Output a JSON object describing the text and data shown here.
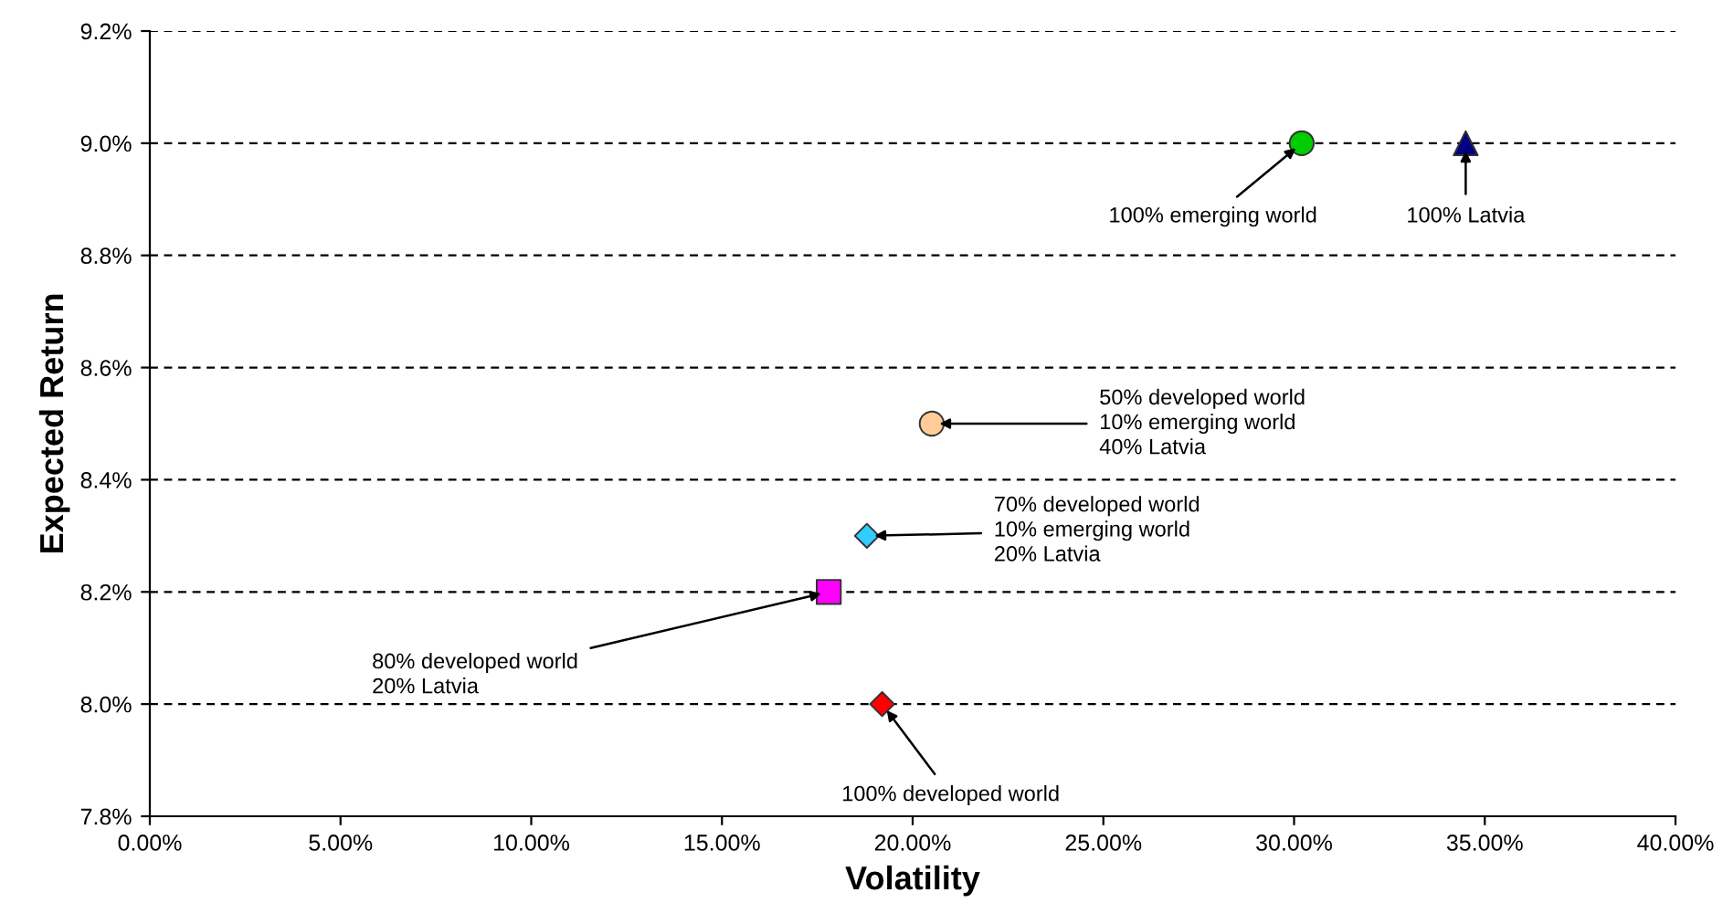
{
  "chart_data": {
    "type": "scatter",
    "xlabel": "Volatility",
    "ylabel": "Expected Return",
    "xlim": [
      0,
      40
    ],
    "ylim": [
      7.8,
      9.2
    ],
    "xticks": [
      {
        "value": 0,
        "label": "0.00%"
      },
      {
        "value": 5,
        "label": "5.00%"
      },
      {
        "value": 10,
        "label": "10.00%"
      },
      {
        "value": 15,
        "label": "15.00%"
      },
      {
        "value": 20,
        "label": "20.00%"
      },
      {
        "value": 25,
        "label": "25.00%"
      },
      {
        "value": 30,
        "label": "30.00%"
      },
      {
        "value": 35,
        "label": "35.00%"
      },
      {
        "value": 40,
        "label": "40.00%"
      }
    ],
    "yticks": [
      {
        "value": 7.8,
        "label": "7.8%"
      },
      {
        "value": 8.0,
        "label": "8.0%"
      },
      {
        "value": 8.2,
        "label": "8.2%"
      },
      {
        "value": 8.4,
        "label": "8.4%"
      },
      {
        "value": 8.6,
        "label": "8.6%"
      },
      {
        "value": 8.8,
        "label": "8.8%"
      },
      {
        "value": 9.0,
        "label": "9.0%"
      },
      {
        "value": 9.2,
        "label": "9.2%"
      }
    ],
    "grid": "y",
    "legend": false,
    "series": [
      {
        "color": "#00cc00",
        "marker": "circle",
        "x": [
          30.2
        ],
        "values": [
          9.0
        ]
      },
      {
        "color": "#000080",
        "marker": "triangle",
        "x": [
          34.5
        ],
        "values": [
          9.0
        ]
      },
      {
        "color": "#ffcc99",
        "marker": "circle",
        "x": [
          20.5
        ],
        "values": [
          8.5
        ]
      },
      {
        "color": "#33ccff",
        "marker": "diamond",
        "x": [
          18.8
        ],
        "values": [
          8.3
        ]
      },
      {
        "color": "#ff00ff",
        "marker": "square",
        "x": [
          17.8
        ],
        "values": [
          8.2
        ]
      },
      {
        "color": "#ff0000",
        "marker": "diamond",
        "x": [
          19.2
        ],
        "values": [
          8.0
        ]
      }
    ],
    "annotations": [
      {
        "text": "100% emerging world",
        "x": 30.2,
        "y": 9.0
      },
      {
        "text": "100% Latvia",
        "x": 34.5,
        "y": 9.0
      },
      {
        "text": "50% developed world\n10% emerging world\n40% Latvia",
        "x": 20.5,
        "y": 8.5
      },
      {
        "text": "70% developed world\n10% emerging world\n20% Latvia",
        "x": 18.8,
        "y": 8.3
      },
      {
        "text": "80% developed world\n20% Latvia",
        "x": 17.8,
        "y": 8.2
      },
      {
        "text": "100% developed world",
        "x": 19.2,
        "y": 8.0
      }
    ]
  }
}
